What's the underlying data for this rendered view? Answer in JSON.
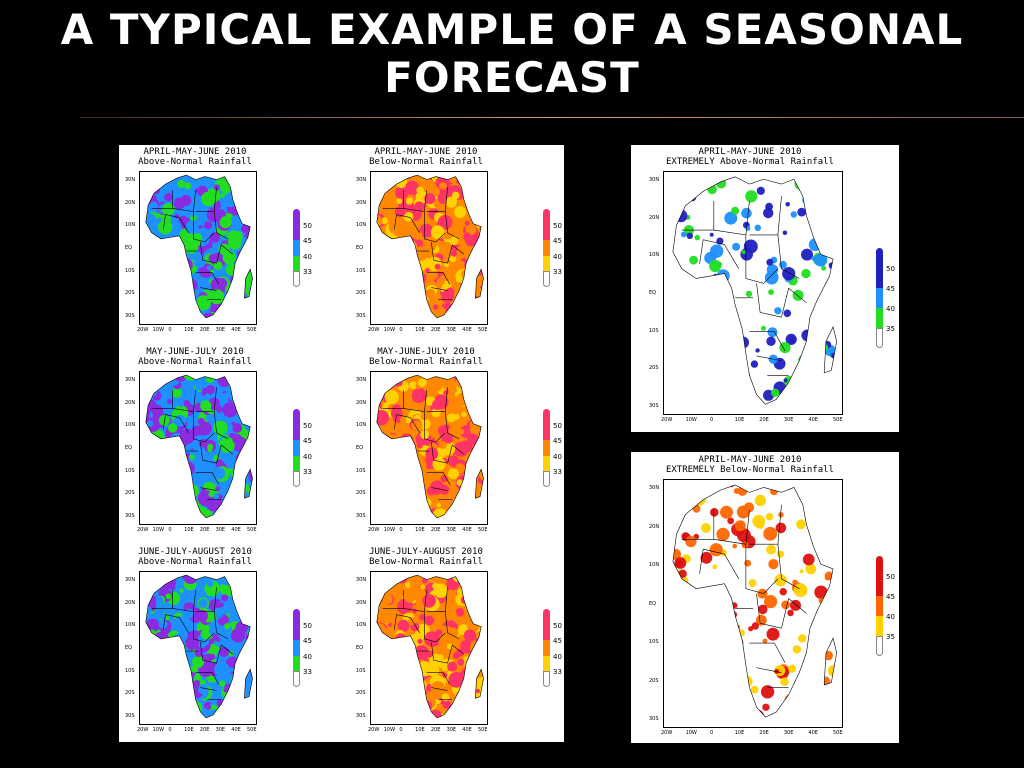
{
  "slide": {
    "title_line1": "A TYPICAL EXAMPLE OF A SEASONAL",
    "title_line2": "FORECAST"
  },
  "axes": {
    "lat_ticks": [
      "30N",
      "20N",
      "10N",
      "EQ",
      "10S",
      "20S",
      "30S"
    ],
    "lon_ticks": [
      "20W",
      "10W",
      "0",
      "10E",
      "20E",
      "30E",
      "40E",
      "50E"
    ]
  },
  "legends": {
    "above_small": [
      "50",
      "45",
      "40",
      "33"
    ],
    "below_small": [
      "50",
      "45",
      "40",
      "33"
    ],
    "extreme": [
      "50",
      "45",
      "40",
      "35"
    ],
    "blue_colors": [
      "#2020c0",
      "#1e90ff",
      "#22dd22"
    ],
    "red_colors": [
      "#dd1111",
      "#ff6600",
      "#ffd100"
    ]
  },
  "maps": [
    {
      "title1": "APRIL-MAY-JUNE 2010",
      "title2": "Above-Normal Rainfall"
    },
    {
      "title1": "APRIL-MAY-JUNE 2010",
      "title2": "Below-Normal Rainfall"
    },
    {
      "title1": "MAY-JUNE-JULY 2010",
      "title2": "Above-Normal Rainfall"
    },
    {
      "title1": "MAY-JUNE-JULY 2010",
      "title2": "Below-Normal Rainfall"
    },
    {
      "title1": "JUNE-JULY-AUGUST 2010",
      "title2": "Above-Normal Rainfall"
    },
    {
      "title1": "JUNE-JULY-AUGUST 2010",
      "title2": "Below-Normal Rainfall"
    },
    {
      "title1": "APRIL-MAY-JUNE 2010",
      "title2": "EXTREMELY Above-Normal Rainfall"
    },
    {
      "title1": "APRIL-MAY-JUNE 2010",
      "title2": "EXTREMELY Below-Normal Rainfall"
    }
  ]
}
